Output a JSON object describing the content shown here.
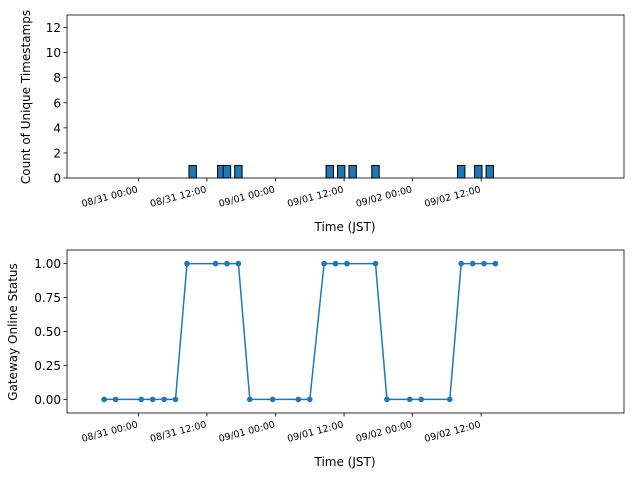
{
  "chart_data": [
    {
      "type": "bar",
      "xlabel": "Time (JST)",
      "ylabel": "Count of Unique Timestamps",
      "ylim": [
        0,
        13
      ],
      "yticks": [
        0,
        2,
        4,
        6,
        8,
        10,
        12
      ],
      "xlim_hours": [
        -12.5,
        85
      ],
      "xticks": [
        {
          "label": "08/31 00:00",
          "hour": 0
        },
        {
          "label": "08/31 12:00",
          "hour": 12
        },
        {
          "label": "09/01 00:00",
          "hour": 24
        },
        {
          "label": "09/01 12:00",
          "hour": 36
        },
        {
          "label": "09/02 00:00",
          "hour": 48
        },
        {
          "label": "09/02 12:00",
          "hour": 60
        }
      ],
      "bar_color": "#1f77b4",
      "bars": [
        {
          "hour": 9.5,
          "value": 1
        },
        {
          "hour": 14.5,
          "value": 1
        },
        {
          "hour": 15.5,
          "value": 1
        },
        {
          "hour": 17.5,
          "value": 1
        },
        {
          "hour": 33.5,
          "value": 1
        },
        {
          "hour": 35.5,
          "value": 1
        },
        {
          "hour": 37.5,
          "value": 1
        },
        {
          "hour": 41.5,
          "value": 1
        },
        {
          "hour": 56.5,
          "value": 1
        },
        {
          "hour": 59.5,
          "value": 1
        },
        {
          "hour": 61.5,
          "value": 1
        }
      ]
    },
    {
      "type": "line",
      "xlabel": "Time (JST)",
      "ylabel": "Gateway Online Status",
      "ylim": [
        -0.1,
        1.1
      ],
      "yticks": [
        "0.00",
        "0.25",
        "0.50",
        "0.75",
        "1.00"
      ],
      "xlim_hours": [
        -12.5,
        85
      ],
      "xticks": [
        {
          "label": "08/31 00:00",
          "hour": 0
        },
        {
          "label": "08/31 12:00",
          "hour": 12
        },
        {
          "label": "09/01 00:00",
          "hour": 24
        },
        {
          "label": "09/01 12:00",
          "hour": 36
        },
        {
          "label": "09/02 00:00",
          "hour": 48
        },
        {
          "label": "09/02 12:00",
          "hour": 60
        }
      ],
      "line_color": "#1f77b4",
      "points": [
        {
          "hour": -6,
          "value": 0
        },
        {
          "hour": -4,
          "value": 0
        },
        {
          "hour": 0.5,
          "value": 0
        },
        {
          "hour": 2.5,
          "value": 0
        },
        {
          "hour": 4.5,
          "value": 0
        },
        {
          "hour": 6.5,
          "value": 0
        },
        {
          "hour": 8.5,
          "value": 1
        },
        {
          "hour": 13.5,
          "value": 1
        },
        {
          "hour": 15.5,
          "value": 1
        },
        {
          "hour": 17.5,
          "value": 1
        },
        {
          "hour": 19.5,
          "value": 0
        },
        {
          "hour": 23.5,
          "value": 0
        },
        {
          "hour": 28,
          "value": 0
        },
        {
          "hour": 30,
          "value": 0
        },
        {
          "hour": 32.5,
          "value": 1
        },
        {
          "hour": 34.5,
          "value": 1
        },
        {
          "hour": 36.5,
          "value": 1
        },
        {
          "hour": 41.5,
          "value": 1
        },
        {
          "hour": 43.5,
          "value": 0
        },
        {
          "hour": 47.5,
          "value": 0
        },
        {
          "hour": 49.5,
          "value": 0
        },
        {
          "hour": 54.5,
          "value": 0
        },
        {
          "hour": 56.5,
          "value": 1
        },
        {
          "hour": 58.5,
          "value": 1
        },
        {
          "hour": 60.5,
          "value": 1
        },
        {
          "hour": 62.5,
          "value": 1
        }
      ]
    }
  ]
}
